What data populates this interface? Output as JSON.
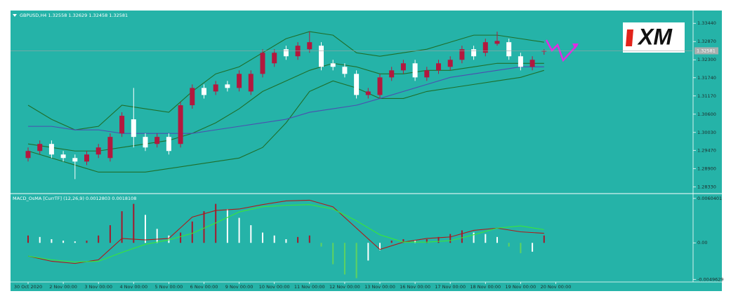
{
  "chart_data": [
    {
      "type": "candlestick",
      "title": "GBPUSD,H4  1.32558 1.32629 1.32458 1.32581",
      "logo": "XM",
      "categories": [
        "30 Oct 2020",
        null,
        null,
        "2 Nov 00:00",
        null,
        null,
        "3 Nov 00:00",
        null,
        null,
        "4 Nov 00:00",
        null,
        null,
        "5 Nov 00:00",
        null,
        null,
        "6 Nov 00:00",
        null,
        null,
        "9 Nov 00:00",
        null,
        null,
        "10 Nov 00:00",
        null,
        null,
        "11 Nov 00:00",
        null,
        null,
        "12 Nov 00:00",
        null,
        null,
        "13 Nov 00:00",
        null,
        null,
        "16 Nov 00:00",
        null,
        null,
        "17 Nov 00:00",
        null,
        null,
        "18 Nov 00:00",
        null,
        null,
        "19 Nov 00:00",
        null,
        null,
        "20 Nov 00:00"
      ],
      "ohlc": [
        [
          1.2923,
          1.2956,
          1.2912,
          1.2945
        ],
        [
          1.2945,
          1.2978,
          1.2934,
          1.2967
        ],
        [
          1.2967,
          1.2978,
          1.2923,
          1.2934
        ],
        [
          1.2934,
          1.2945,
          1.2912,
          1.2923
        ],
        [
          1.2923,
          1.2934,
          1.2857,
          1.2912
        ],
        [
          1.2912,
          1.2945,
          1.2901,
          1.2934
        ],
        [
          1.2934,
          1.2967,
          1.2923,
          1.2956
        ],
        [
          1.2923,
          1.3,
          1.2912,
          1.2989
        ],
        [
          1.3,
          1.3066,
          1.2989,
          1.3055
        ],
        [
          1.3044,
          1.3142,
          1.2956,
          1.2989
        ],
        [
          1.2989,
          1.3,
          1.2945,
          1.2956
        ],
        [
          1.2967,
          1.3,
          1.2956,
          1.2989
        ],
        [
          1.2989,
          1.3,
          1.2934,
          1.2945
        ],
        [
          1.2967,
          1.3098,
          1.2956,
          1.3088
        ],
        [
          1.3088,
          1.3153,
          1.3077,
          1.3142
        ],
        [
          1.3142,
          1.3153,
          1.3109,
          1.312
        ],
        [
          1.3131,
          1.3164,
          1.312,
          1.3153
        ],
        [
          1.3153,
          1.3164,
          1.3131,
          1.3142
        ],
        [
          1.3142,
          1.3197,
          1.3131,
          1.3186
        ],
        [
          1.3131,
          1.3197,
          1.312,
          1.3186
        ],
        [
          1.3186,
          1.3263,
          1.3175,
          1.3252
        ],
        [
          1.3219,
          1.3263,
          1.3208,
          1.3252
        ],
        [
          1.3263,
          1.3274,
          1.323,
          1.3241
        ],
        [
          1.3241,
          1.3285,
          1.323,
          1.3274
        ],
        [
          1.3263,
          1.3318,
          1.3252,
          1.3285
        ],
        [
          1.3274,
          1.3285,
          1.3197,
          1.3208
        ],
        [
          1.3219,
          1.323,
          1.3197,
          1.3208
        ],
        [
          1.3208,
          1.3219,
          1.3175,
          1.3186
        ],
        [
          1.3186,
          1.3197,
          1.3109,
          1.312
        ],
        [
          1.312,
          1.3142,
          1.3109,
          1.3131
        ],
        [
          1.312,
          1.3186,
          1.3109,
          1.3175
        ],
        [
          1.3175,
          1.3208,
          1.3164,
          1.3197
        ],
        [
          1.3197,
          1.323,
          1.3186,
          1.3219
        ],
        [
          1.3219,
          1.323,
          1.3164,
          1.3175
        ],
        [
          1.3175,
          1.3208,
          1.3164,
          1.3197
        ],
        [
          1.3197,
          1.323,
          1.3186,
          1.3219
        ],
        [
          1.3208,
          1.3241,
          1.3197,
          1.323
        ],
        [
          1.323,
          1.3274,
          1.3219,
          1.3263
        ],
        [
          1.3263,
          1.3274,
          1.323,
          1.3241
        ],
        [
          1.3252,
          1.3296,
          1.3241,
          1.3285
        ],
        [
          1.328,
          1.3318,
          1.3274,
          1.3289
        ],
        [
          1.3285,
          1.3296,
          1.323,
          1.3241
        ],
        [
          1.3241,
          1.3252,
          1.3197,
          1.3208
        ],
        [
          1.3208,
          1.3241,
          1.3197,
          1.323
        ],
        [
          1.32558,
          1.32629,
          1.32458,
          1.32581
        ],
        null
      ],
      "up_color": "#b3183e",
      "down_color": "#ffffff",
      "series": [
        {
          "color": "#1f6e2a",
          "x": [
            0,
            2,
            4,
            6,
            8,
            10,
            12,
            14,
            16,
            18,
            20,
            22,
            24,
            26,
            28,
            30,
            32,
            34,
            36,
            38,
            40,
            42,
            44
          ],
          "values": [
            1.3088,
            1.3044,
            1.3011,
            1.3022,
            1.3088,
            1.3077,
            1.3066,
            1.3131,
            1.3186,
            1.3208,
            1.3252,
            1.3296,
            1.3318,
            1.3307,
            1.3252,
            1.3241,
            1.3252,
            1.3263,
            1.3285,
            1.3307,
            1.3307,
            1.3296,
            1.3285
          ]
        },
        {
          "color": "#1f6e2a",
          "x": [
            0,
            2,
            4,
            6,
            8,
            10,
            12,
            14,
            16,
            18,
            20,
            22,
            24,
            26,
            28,
            30,
            32,
            34,
            36,
            38,
            40,
            42,
            44
          ],
          "values": [
            1.2967,
            1.2956,
            1.2945,
            1.2945,
            1.2956,
            1.2967,
            1.2978,
            1.3,
            1.3033,
            1.3077,
            1.3131,
            1.3164,
            1.3197,
            1.3219,
            1.3208,
            1.3186,
            1.3186,
            1.3197,
            1.3197,
            1.3208,
            1.3219,
            1.3219,
            1.3219
          ]
        },
        {
          "color": "#1f6e2a",
          "x": [
            0,
            2,
            4,
            6,
            8,
            10,
            12,
            14,
            16,
            18,
            20,
            22,
            24,
            26,
            28,
            30,
            32,
            34,
            36,
            38,
            40,
            42,
            44
          ],
          "values": [
            1.2945,
            1.2923,
            1.2901,
            1.2879,
            1.2879,
            1.2879,
            1.289,
            1.2901,
            1.2912,
            1.2923,
            1.2956,
            1.3033,
            1.3131,
            1.3164,
            1.3142,
            1.3109,
            1.3109,
            1.3131,
            1.3142,
            1.3153,
            1.3164,
            1.3175,
            1.3197
          ]
        },
        {
          "color": "#4b4fb0",
          "x": [
            0,
            2,
            4,
            6,
            8,
            10,
            12,
            14,
            16,
            18,
            20,
            22,
            24,
            26,
            28,
            30,
            32,
            34,
            36,
            38,
            40,
            42,
            44
          ],
          "values": [
            1.3022,
            1.3022,
            1.3011,
            1.3011,
            1.3,
            1.3,
            1.3,
            1.3,
            1.3011,
            1.3022,
            1.3033,
            1.3044,
            1.3066,
            1.3077,
            1.3088,
            1.3109,
            1.3131,
            1.3153,
            1.3175,
            1.3186,
            1.3197,
            1.3208,
            1.3208
          ]
        }
      ],
      "ylim": [
        1.2814,
        1.3384
      ],
      "yticks": [
        {
          "value": 1.3344,
          "label": "1.33440"
        },
        {
          "value": 1.3287,
          "label": "1.32870"
        },
        {
          "value": 1.323,
          "label": "1.32300"
        },
        {
          "value": 1.3174,
          "label": "1.31740"
        },
        {
          "value": 1.3117,
          "label": "1.31170"
        },
        {
          "value": 1.306,
          "label": "1.30600"
        },
        {
          "value": 1.3003,
          "label": "1.30030"
        },
        {
          "value": 1.2947,
          "label": "1.29470"
        },
        {
          "value": 1.289,
          "label": "1.28900"
        },
        {
          "value": 1.2833,
          "label": "1.28330"
        }
      ]
    },
    {
      "type": "bar",
      "title": "MACD_OsMA [CurrTF] (12,26,9) 0.0012803 0.0018108",
      "values": [
        0.001,
        0.0008,
        0.0005,
        0.0003,
        0.0002,
        0.0003,
        0.001,
        0.0024,
        0.0043,
        0.0053,
        0.0038,
        0.0019,
        0.001,
        0.0014,
        0.0029,
        0.0043,
        0.0053,
        0.0046,
        0.0034,
        0.0024,
        0.0014,
        0.001,
        0.0005,
        0.0008,
        0.001,
        -0.0005,
        -0.0029,
        -0.0043,
        -0.0048,
        -0.0024,
        -0.001,
        0.0003,
        0.0005,
        0.0003,
        0.0005,
        0.0008,
        0.0012,
        0.0017,
        0.0014,
        0.0012,
        0.0008,
        -0.0005,
        -0.0014,
        -0.0012,
        0.001,
        null
      ],
      "rising_color": "#a5182c",
      "falling_color": "#ffffff",
      "negative_color": "#5fd35f",
      "series": [
        {
          "color": "#b01818",
          "x": [
            0,
            2,
            4,
            6,
            8,
            10,
            12,
            14,
            16,
            18,
            20,
            22,
            24,
            26,
            28,
            30,
            32,
            34,
            36,
            38,
            40,
            42,
            44
          ],
          "values": [
            -0.0018,
            -0.0025,
            -0.0028,
            -0.0023,
            0.0006,
            0.0004,
            0.0006,
            0.0035,
            0.0044,
            0.0046,
            0.0052,
            0.0057,
            0.0058,
            0.0049,
            0.002,
            -0.0009,
            0.0001,
            0.0006,
            0.0008,
            0.0017,
            0.002,
            0.0015,
            0.0013
          ]
        },
        {
          "color": "#39e639",
          "x": [
            0,
            2,
            4,
            6,
            8,
            10,
            12,
            14,
            16,
            18,
            20,
            22,
            24,
            26,
            28,
            30,
            32,
            34,
            36,
            38,
            40,
            42,
            44
          ],
          "values": [
            -0.0018,
            -0.0023,
            -0.0026,
            -0.0025,
            -0.0013,
            -0.0002,
            0.0004,
            0.0013,
            0.0027,
            0.0042,
            0.0049,
            0.0051,
            0.0052,
            0.0046,
            0.003,
            0.0011,
            0.0001,
            0.0001,
            0.0003,
            0.0011,
            0.002,
            0.0023,
            0.0018
          ]
        }
      ],
      "ylim": [
        -0.0056,
        0.0066
      ],
      "yticks": [
        0.0060401,
        {
          "value": 0,
          "label": "0.00"
        },
        -0.0049629
      ]
    }
  ]
}
